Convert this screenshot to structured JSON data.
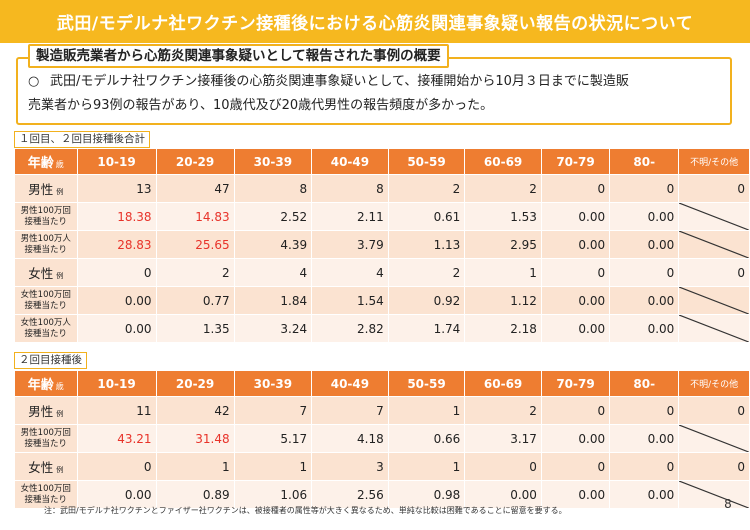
{
  "header": {
    "title": "武田/モデルナ社ワクチン接種後における心筋炎関連事象疑い報告の状況について"
  },
  "summary": {
    "title": "製造販売業者から心筋炎関連事象疑いとして報告された事例の概要",
    "bullet": "○",
    "text_line1": "武田/モデルナ社ワクチン接種後の心筋炎関連事象疑いとして、接種開始から10月３日までに製造販",
    "text_line2": "売業者から93例の報告があり、10歳代及び20歳代男性の報告頻度が多かった。"
  },
  "table1": {
    "label": "１回目、２回目接種後合計",
    "age_header": "年齢",
    "age_unit": "歳",
    "age_groups": [
      "10-19",
      "20-29",
      "30-39",
      "40-49",
      "50-59",
      "60-69",
      "70-79",
      "80-"
    ],
    "unknown_header": "不明/その他",
    "rows": [
      {
        "label": "男性",
        "unit": "例",
        "type": "big",
        "values": [
          "13",
          "47",
          "8",
          "8",
          "2",
          "2",
          "0",
          "0"
        ],
        "red": [],
        "unknown": "0"
      },
      {
        "label1": "男性100万回",
        "label2": "接種当たり",
        "type": "two",
        "values": [
          "18.38",
          "14.83",
          "2.52",
          "2.11",
          "0.61",
          "1.53",
          "0.00",
          "0.00"
        ],
        "red": [
          0,
          1
        ],
        "unknown": null
      },
      {
        "label1": "男性100万人",
        "label2": "接種当たり",
        "type": "two",
        "values": [
          "28.83",
          "25.65",
          "4.39",
          "3.79",
          "1.13",
          "2.95",
          "0.00",
          "0.00"
        ],
        "red": [
          0,
          1
        ],
        "unknown": null
      },
      {
        "label": "女性",
        "unit": "例",
        "type": "big",
        "values": [
          "0",
          "2",
          "4",
          "4",
          "2",
          "1",
          "0",
          "0"
        ],
        "red": [],
        "unknown": "0"
      },
      {
        "label1": "女性100万回",
        "label2": "接種当たり",
        "type": "two",
        "values": [
          "0.00",
          "0.77",
          "1.84",
          "1.54",
          "0.92",
          "1.12",
          "0.00",
          "0.00"
        ],
        "red": [],
        "unknown": null
      },
      {
        "label1": "女性100万人",
        "label2": "接種当たり",
        "type": "two",
        "values": [
          "0.00",
          "1.35",
          "3.24",
          "2.82",
          "1.74",
          "2.18",
          "0.00",
          "0.00"
        ],
        "red": [],
        "unknown": null
      }
    ]
  },
  "table2": {
    "label": "２回目接種後",
    "age_header": "年齢",
    "age_unit": "歳",
    "age_groups": [
      "10-19",
      "20-29",
      "30-39",
      "40-49",
      "50-59",
      "60-69",
      "70-79",
      "80-"
    ],
    "unknown_header": "不明/その他",
    "rows": [
      {
        "label": "男性",
        "unit": "例",
        "type": "big",
        "values": [
          "11",
          "42",
          "7",
          "7",
          "1",
          "2",
          "0",
          "0"
        ],
        "red": [],
        "unknown": "0"
      },
      {
        "label1": "男性100万回",
        "label2": "接種当たり",
        "type": "two",
        "values": [
          "43.21",
          "31.48",
          "5.17",
          "4.18",
          "0.66",
          "3.17",
          "0.00",
          "0.00"
        ],
        "red": [
          0,
          1
        ],
        "unknown": null
      },
      {
        "label": "女性",
        "unit": "例",
        "type": "big",
        "values": [
          "0",
          "1",
          "1",
          "3",
          "1",
          "0",
          "0",
          "0"
        ],
        "red": [],
        "unknown": "0"
      },
      {
        "label1": "女性100万回",
        "label2": "接種当たり",
        "type": "two",
        "values": [
          "0.00",
          "0.89",
          "1.06",
          "2.56",
          "0.98",
          "0.00",
          "0.00",
          "0.00"
        ],
        "red": [],
        "unknown": null
      }
    ]
  },
  "footnote": "注：武田/モデルナ社ワクチンとファイザー社ワクチンは、被接種者の属性等が大きく異なるため、単純な比較は困難であることに留意を要する。",
  "page_number": "8",
  "colors": {
    "header_bar": "#f6b81f",
    "table_header": "#ee7d31",
    "row_odd": "#fbe3d1",
    "row_even": "#fdf1e9",
    "highlight_red": "#e8332a",
    "box_border": "#f2b11e"
  }
}
